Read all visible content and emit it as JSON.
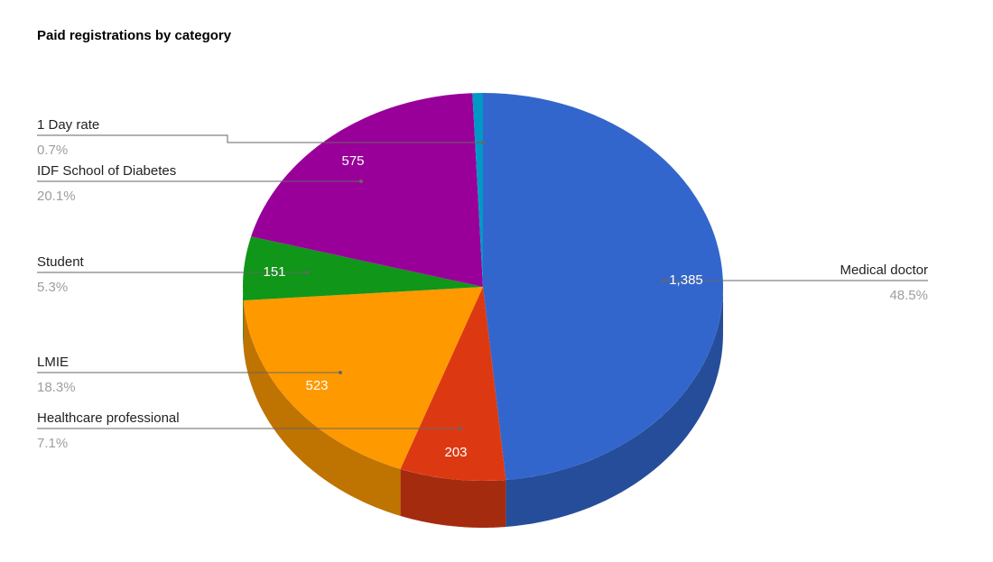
{
  "chart_data": {
    "type": "pie",
    "style": "3d",
    "title": "Paid registrations by category",
    "legend": "labeled",
    "slices": [
      {
        "label": "Medical doctor",
        "value": 1385,
        "value_label": "1,385",
        "percent": "48.5%",
        "color": "#3366cc"
      },
      {
        "label": "Healthcare professional",
        "value": 203,
        "value_label": "203",
        "percent": "7.1%",
        "color": "#dc3912"
      },
      {
        "label": "LMIE",
        "value": 523,
        "value_label": "523",
        "percent": "18.3%",
        "color": "#ff9900"
      },
      {
        "label": "Student",
        "value": 151,
        "value_label": "151",
        "percent": "5.3%",
        "color": "#109618"
      },
      {
        "label": "IDF School of Diabetes",
        "value": 575,
        "value_label": "575",
        "percent": "20.1%",
        "color": "#990099"
      },
      {
        "label": "1 Day rate",
        "value": 20,
        "value_label": "",
        "percent": "0.7%",
        "color": "#0099c6"
      }
    ]
  }
}
